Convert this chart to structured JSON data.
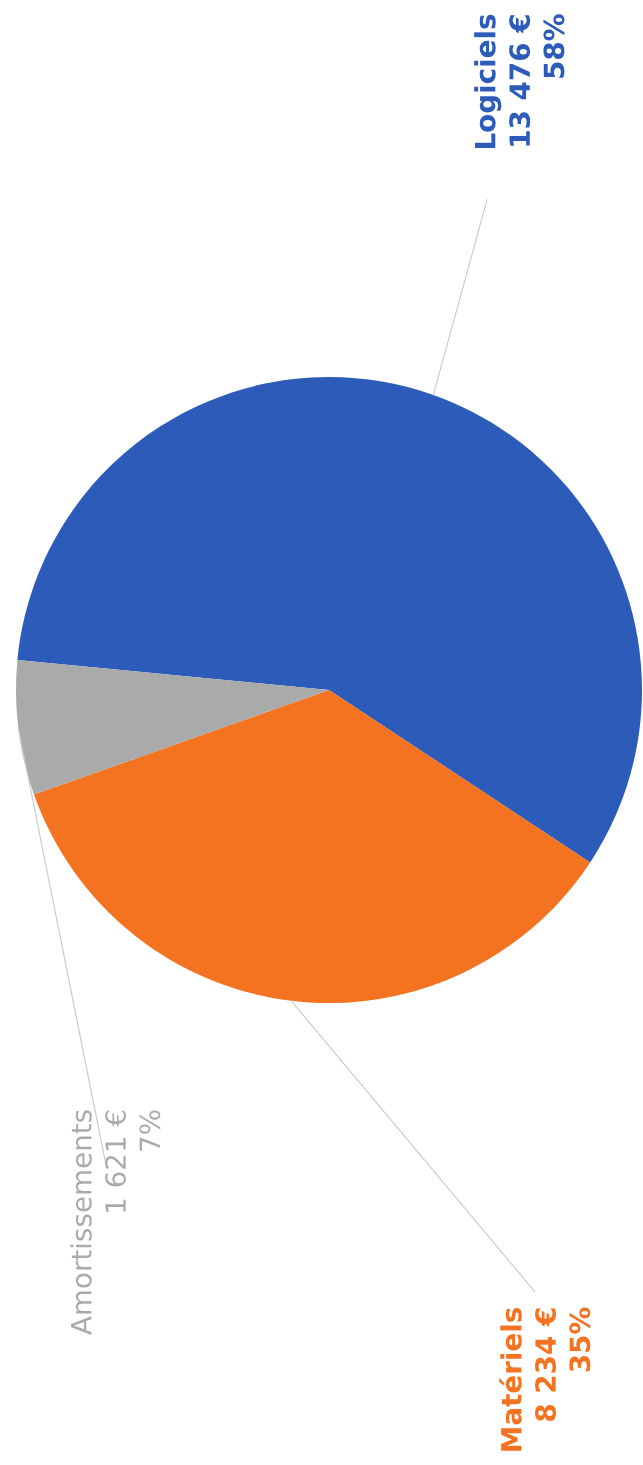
{
  "chart_data": {
    "type": "pie",
    "categories": [
      "Logiciels",
      "Matériels",
      "Amortissements"
    ],
    "values": [
      13476,
      8234,
      1621
    ],
    "value_labels": [
      "13 476 €\n58%",
      "8 234 €\n35%",
      "1 621 €\n7%"
    ],
    "colors": [
      "#2d5bb9",
      "#f47321",
      "#a9abab"
    ]
  }
}
